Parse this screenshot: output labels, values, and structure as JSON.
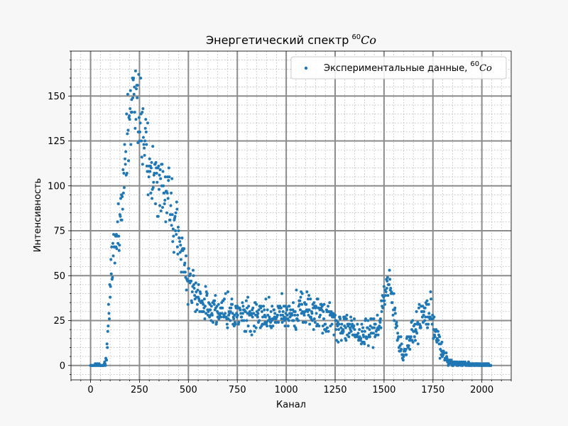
{
  "chart_data": {
    "type": "scatter",
    "title": "Энергетический спектр",
    "title_sup": "60",
    "title_math": "Co",
    "xlabel": "Канал",
    "ylabel": "Интенсивность",
    "xlim": [
      -100,
      2150
    ],
    "ylim": [
      -8,
      175
    ],
    "x_ticks": [
      0,
      250,
      500,
      750,
      1000,
      1250,
      1500,
      1750,
      2000
    ],
    "x_tick_labels": [
      "0",
      "250",
      "500",
      "750",
      "1000",
      "1250",
      "1500",
      "1750",
      "2000"
    ],
    "y_ticks": [
      0,
      25,
      50,
      75,
      100,
      125,
      150
    ],
    "y_tick_labels": [
      "0",
      "25",
      "50",
      "75",
      "100",
      "125",
      "150"
    ],
    "x_minor_step": 50,
    "y_minor_step": 5,
    "grid": true,
    "legend_position": "top-right",
    "series": [
      {
        "name": "Экспериментальные данные,",
        "name_sup": "60",
        "name_math": "Co",
        "color": "#1f77b4",
        "channel_step": 2,
        "x_start": 0,
        "x_end": 2046,
        "profile": [
          [
            0,
            0
          ],
          [
            60,
            0
          ],
          [
            75,
            1
          ],
          [
            85,
            10
          ],
          [
            95,
            32
          ],
          [
            105,
            55
          ],
          [
            130,
            70
          ],
          [
            160,
            92
          ],
          [
            185,
            128
          ],
          [
            210,
            145
          ],
          [
            235,
            150
          ],
          [
            265,
            132
          ],
          [
            300,
            112
          ],
          [
            350,
            102
          ],
          [
            400,
            92
          ],
          [
            450,
            72
          ],
          [
            500,
            48
          ],
          [
            550,
            38
          ],
          [
            600,
            33
          ],
          [
            700,
            29
          ],
          [
            800,
            28
          ],
          [
            900,
            27
          ],
          [
            1000,
            28
          ],
          [
            1100,
            31
          ],
          [
            1200,
            29
          ],
          [
            1250,
            24
          ],
          [
            1300,
            22
          ],
          [
            1350,
            18
          ],
          [
            1400,
            17
          ],
          [
            1450,
            20
          ],
          [
            1480,
            25
          ],
          [
            1500,
            40
          ],
          [
            1520,
            45
          ],
          [
            1540,
            38
          ],
          [
            1560,
            25
          ],
          [
            1580,
            12
          ],
          [
            1600,
            6
          ],
          [
            1620,
            12
          ],
          [
            1650,
            18
          ],
          [
            1680,
            25
          ],
          [
            1720,
            30
          ],
          [
            1745,
            28
          ],
          [
            1770,
            16
          ],
          [
            1800,
            6
          ],
          [
            1830,
            2
          ],
          [
            1860,
            1
          ],
          [
            2046,
            0
          ]
        ]
      }
    ]
  }
}
